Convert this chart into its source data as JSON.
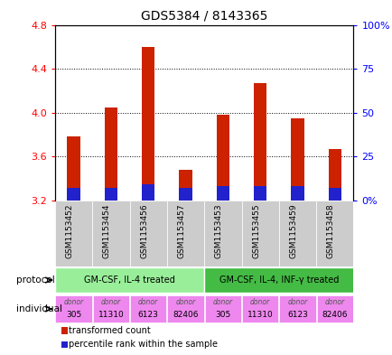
{
  "title": "GDS5384 / 8143365",
  "samples": [
    "GSM1153452",
    "GSM1153454",
    "GSM1153456",
    "GSM1153457",
    "GSM1153453",
    "GSM1153455",
    "GSM1153459",
    "GSM1153458"
  ],
  "bar_bottom": 3.2,
  "transformed_counts": [
    3.78,
    4.05,
    4.6,
    3.48,
    3.98,
    4.27,
    3.95,
    3.67
  ],
  "percentile_values": [
    7,
    7,
    9,
    7,
    8,
    8,
    8,
    7
  ],
  "ylim": [
    3.2,
    4.8
  ],
  "yticks": [
    3.2,
    3.6,
    4.0,
    4.4,
    4.8
  ],
  "y2ticks": [
    0,
    25,
    50,
    75,
    100
  ],
  "bar_color": "#cc2200",
  "pct_color": "#2222cc",
  "bg_color": "#ffffff",
  "plot_bg": "#ffffff",
  "xtick_bg": "#cccccc",
  "protocol_groups": [
    {
      "label": "GM-CSF, IL-4 treated",
      "start": 0,
      "end": 4,
      "color": "#99ee99"
    },
    {
      "label": "GM-CSF, IL-4, INF-γ treated",
      "start": 4,
      "end": 8,
      "color": "#44bb44"
    }
  ],
  "individuals": [
    "305",
    "11310",
    "6123",
    "82406",
    "305",
    "11310",
    "6123",
    "82406"
  ],
  "ind_colors": [
    "#ee88ee",
    "#ee88ee",
    "#ee88ee",
    "#ee88ee",
    "#ee88ee",
    "#ee88ee",
    "#ee88ee",
    "#ee88ee"
  ],
  "protocol_label": "protocol",
  "individual_label": "individual",
  "bar_width": 0.35
}
